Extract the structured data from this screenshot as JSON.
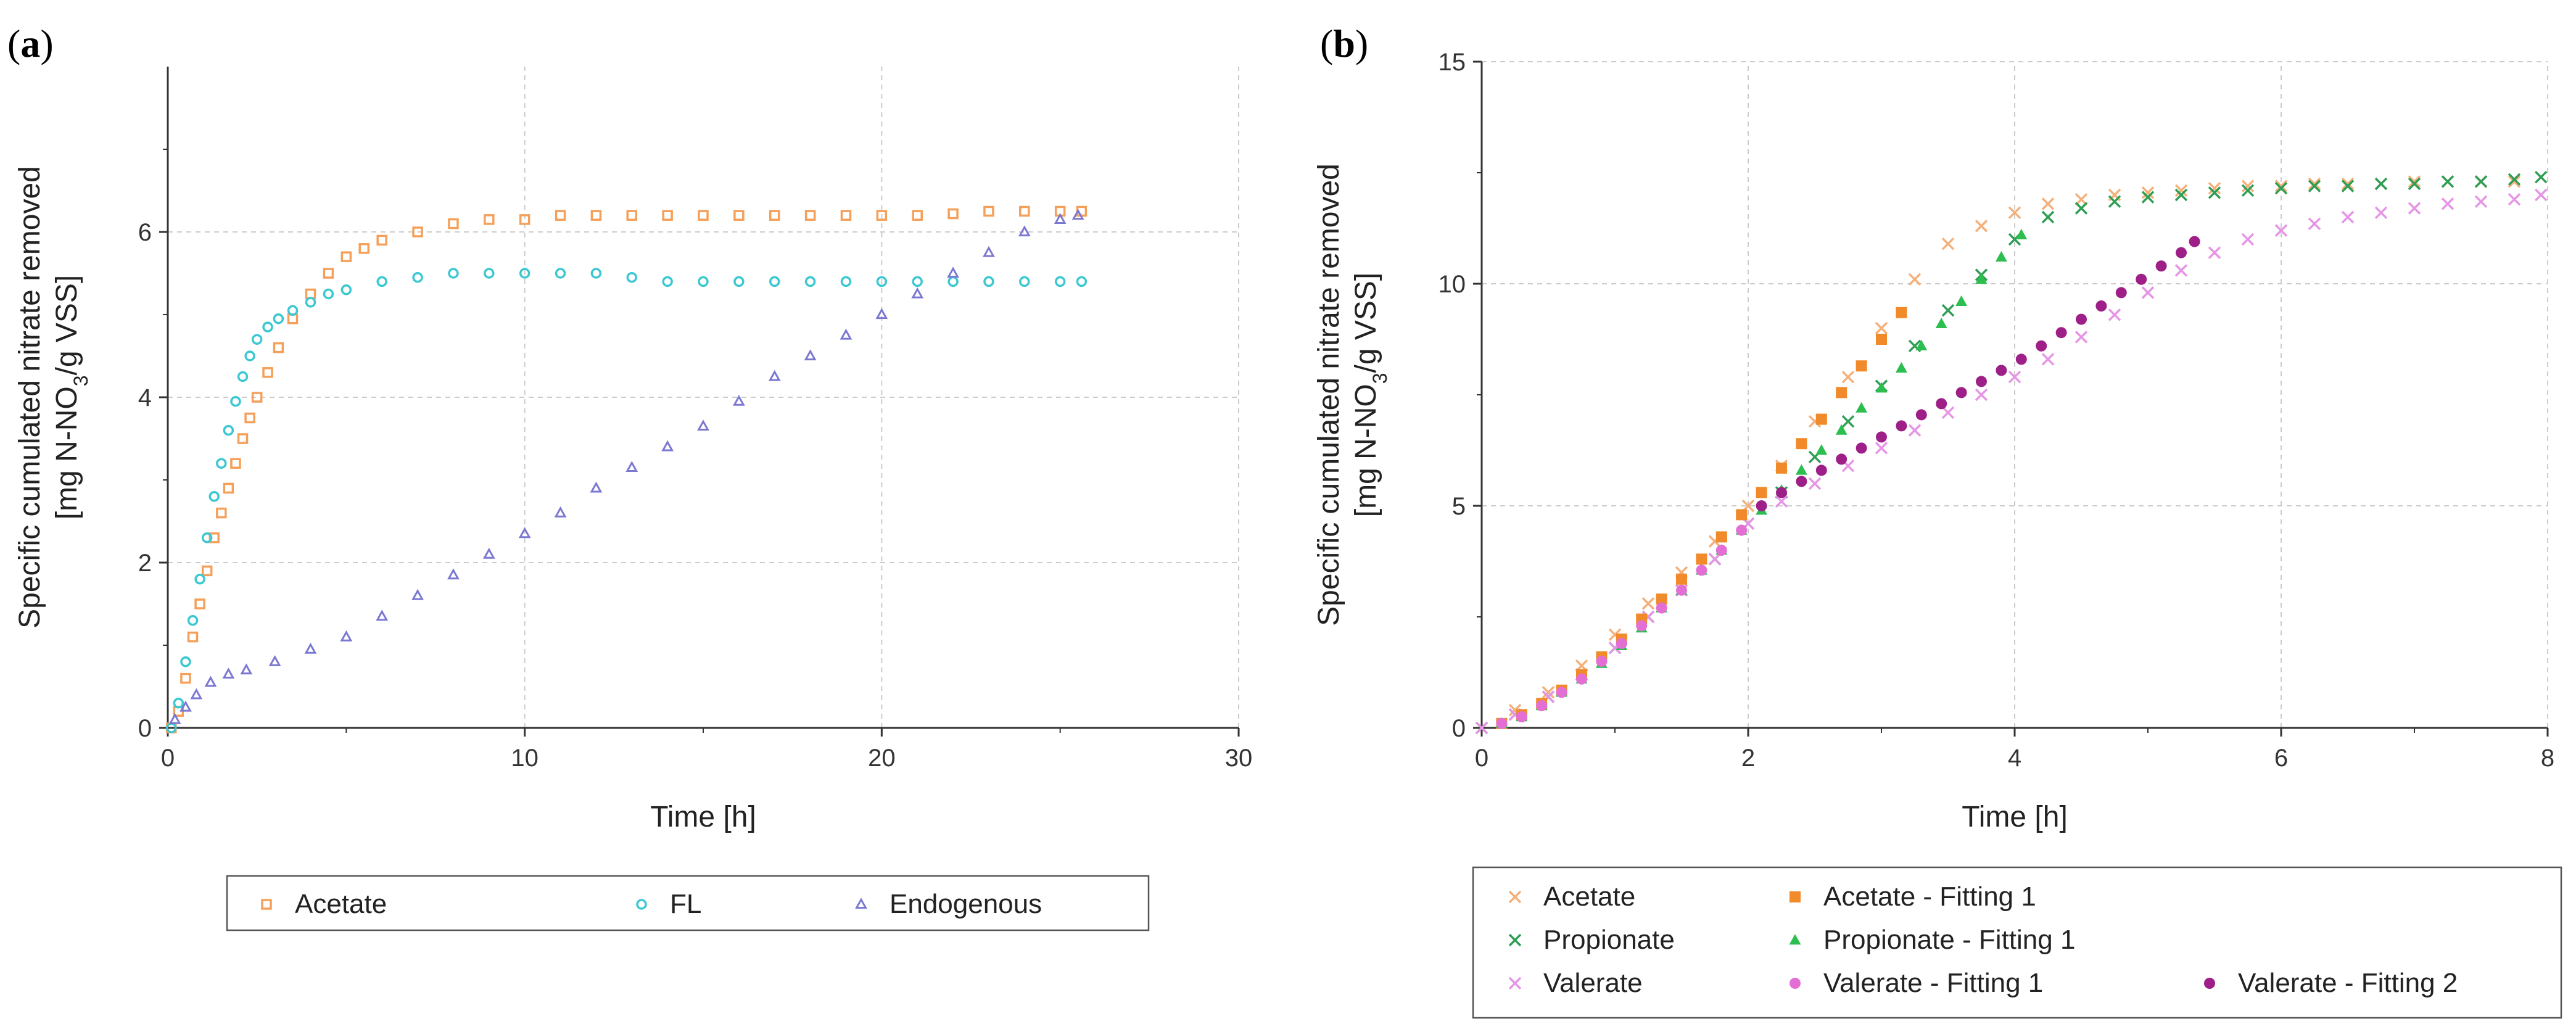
{
  "chart_data": [
    {
      "panel_label": "(a)",
      "panel_letter": "a",
      "type": "scatter",
      "xlabel": "Time [h]",
      "ylabel_line1": "Specific cumulated nitrate removed",
      "ylabel_line2": "[mg N-NO",
      "ylabel_sub": "3",
      "ylabel_line2_end": "/g VSS]",
      "xlim": [
        0,
        30
      ],
      "ylim": [
        0,
        8
      ],
      "xticks": [
        0,
        10,
        20,
        30
      ],
      "yticks": [
        0,
        2,
        4,
        6
      ],
      "grid": true,
      "legend_position": "bottom",
      "series": [
        {
          "name": "Acetate",
          "marker": "open-square",
          "color": "#F5A05A",
          "x": [
            0.1,
            0.3,
            0.5,
            0.7,
            0.9,
            1.1,
            1.3,
            1.5,
            1.7,
            1.9,
            2.1,
            2.3,
            2.5,
            2.8,
            3.1,
            3.5,
            4.0,
            4.5,
            5.0,
            5.5,
            6.0,
            7.0,
            8.0,
            9.0,
            10.0,
            11.0,
            12.0,
            13.0,
            14.0,
            15.0,
            16.0,
            17.0,
            18.0,
            19.0,
            20.0,
            21.0,
            22.0,
            23.0,
            24.0,
            25.0,
            25.6
          ],
          "y": [
            0.0,
            0.2,
            0.6,
            1.1,
            1.5,
            1.9,
            2.3,
            2.6,
            2.9,
            3.2,
            3.5,
            3.75,
            4.0,
            4.3,
            4.6,
            4.95,
            5.25,
            5.5,
            5.7,
            5.8,
            5.9,
            6.0,
            6.1,
            6.15,
            6.15,
            6.2,
            6.2,
            6.2,
            6.2,
            6.2,
            6.2,
            6.2,
            6.2,
            6.2,
            6.2,
            6.2,
            6.22,
            6.25,
            6.25,
            6.25,
            6.25
          ]
        },
        {
          "name": "FL",
          "marker": "open-circle",
          "color": "#3CC8D2",
          "x": [
            0.1,
            0.3,
            0.5,
            0.7,
            0.9,
            1.1,
            1.3,
            1.5,
            1.7,
            1.9,
            2.1,
            2.3,
            2.5,
            2.8,
            3.1,
            3.5,
            4.0,
            4.5,
            5.0,
            6.0,
            7.0,
            8.0,
            9.0,
            10.0,
            11.0,
            12.0,
            13.0,
            14.0,
            15.0,
            16.0,
            17.0,
            18.0,
            19.0,
            20.0,
            21.0,
            22.0,
            23.0,
            24.0,
            25.0,
            25.6
          ],
          "y": [
            0.0,
            0.3,
            0.8,
            1.3,
            1.8,
            2.3,
            2.8,
            3.2,
            3.6,
            3.95,
            4.25,
            4.5,
            4.7,
            4.85,
            4.95,
            5.05,
            5.15,
            5.25,
            5.3,
            5.4,
            5.45,
            5.5,
            5.5,
            5.5,
            5.5,
            5.5,
            5.45,
            5.4,
            5.4,
            5.4,
            5.4,
            5.4,
            5.4,
            5.4,
            5.4,
            5.4,
            5.4,
            5.4,
            5.4,
            5.4
          ]
        },
        {
          "name": "Endogenous",
          "marker": "open-triangle",
          "color": "#7B78D2",
          "x": [
            0.2,
            0.5,
            0.8,
            1.2,
            1.7,
            2.2,
            3.0,
            4.0,
            5.0,
            6.0,
            7.0,
            8.0,
            9.0,
            10.0,
            11.0,
            12.0,
            13.0,
            14.0,
            15.0,
            16.0,
            17.0,
            18.0,
            19.0,
            20.0,
            21.0,
            22.0,
            23.0,
            24.0,
            25.0,
            25.5
          ],
          "y": [
            0.1,
            0.25,
            0.4,
            0.55,
            0.65,
            0.7,
            0.8,
            0.95,
            1.1,
            1.35,
            1.6,
            1.85,
            2.1,
            2.35,
            2.6,
            2.9,
            3.15,
            3.4,
            3.65,
            3.95,
            4.25,
            4.5,
            4.75,
            5.0,
            5.25,
            5.5,
            5.75,
            6.0,
            6.15,
            6.2
          ]
        }
      ]
    },
    {
      "panel_label": "(b)",
      "panel_letter": "b",
      "type": "scatter",
      "xlabel": "Time [h]",
      "ylabel_line1": "Specific cumulated nitrate removed",
      "ylabel_line2": "[mg N-NO",
      "ylabel_sub": "3",
      "ylabel_line2_end": "/g VSS]",
      "xlim": [
        0,
        8
      ],
      "ylim": [
        0,
        15
      ],
      "xticks": [
        0,
        2,
        4,
        6,
        8
      ],
      "yticks": [
        0,
        5,
        10,
        15
      ],
      "grid": true,
      "legend_position": "bottom",
      "series": [
        {
          "name": "Acetate",
          "marker": "cross",
          "color": "#F5B07A",
          "x": [
            0.0,
            0.25,
            0.5,
            0.75,
            1.0,
            1.25,
            1.5,
            1.75,
            2.0,
            2.25,
            2.5,
            2.75,
            3.0,
            3.25,
            3.5,
            3.75,
            4.0,
            4.25,
            4.5,
            4.75,
            5.0,
            5.25,
            5.5,
            5.75,
            6.0,
            6.25,
            6.5,
            6.75,
            7.0,
            7.25,
            7.5,
            7.75
          ],
          "y": [
            0.0,
            0.4,
            0.8,
            1.4,
            2.1,
            2.8,
            3.5,
            4.2,
            5.0,
            5.9,
            6.9,
            7.9,
            9.0,
            10.1,
            10.9,
            11.3,
            11.6,
            11.8,
            11.9,
            12.0,
            12.05,
            12.1,
            12.15,
            12.2,
            12.2,
            12.25,
            12.25,
            12.25,
            12.3,
            12.3,
            12.3,
            12.3
          ]
        },
        {
          "name": "Propionate",
          "marker": "cross",
          "color": "#2E9E54",
          "x": [
            0.0,
            0.25,
            0.5,
            0.75,
            1.0,
            1.25,
            1.5,
            1.75,
            2.0,
            2.25,
            2.5,
            2.75,
            3.0,
            3.25,
            3.5,
            3.75,
            4.0,
            4.25,
            4.5,
            4.75,
            5.0,
            5.25,
            5.5,
            5.75,
            6.0,
            6.25,
            6.5,
            6.75,
            7.0,
            7.25,
            7.5,
            7.75,
            7.95
          ],
          "y": [
            0.0,
            0.3,
            0.7,
            1.2,
            1.8,
            2.5,
            3.1,
            3.8,
            4.6,
            5.3,
            6.1,
            6.9,
            7.7,
            8.6,
            9.4,
            10.2,
            11.0,
            11.5,
            11.7,
            11.85,
            11.95,
            12.0,
            12.05,
            12.1,
            12.15,
            12.2,
            12.2,
            12.25,
            12.25,
            12.3,
            12.3,
            12.35,
            12.4
          ]
        },
        {
          "name": "Valerate",
          "marker": "cross",
          "color": "#E695E6",
          "x": [
            0.0,
            0.25,
            0.5,
            0.75,
            1.0,
            1.25,
            1.5,
            1.75,
            2.0,
            2.25,
            2.5,
            2.75,
            3.0,
            3.25,
            3.5,
            3.75,
            4.0,
            4.25,
            4.5,
            4.75,
            5.0,
            5.25,
            5.5,
            5.75,
            6.0,
            6.25,
            6.5,
            6.75,
            7.0,
            7.25,
            7.5,
            7.75,
            7.95
          ],
          "y": [
            0.0,
            0.3,
            0.7,
            1.2,
            1.8,
            2.5,
            3.1,
            3.8,
            4.6,
            5.1,
            5.5,
            5.9,
            6.3,
            6.7,
            7.1,
            7.5,
            7.9,
            8.3,
            8.8,
            9.3,
            9.8,
            10.3,
            10.7,
            11.0,
            11.2,
            11.35,
            11.5,
            11.6,
            11.7,
            11.8,
            11.85,
            11.9,
            12.0
          ]
        },
        {
          "name": "Acetate - Fitting 1",
          "marker": "filled-square",
          "color": "#F08A2A",
          "x": [
            0.15,
            0.3,
            0.45,
            0.6,
            0.75,
            0.9,
            1.05,
            1.2,
            1.35,
            1.5,
            1.65,
            1.8,
            1.95,
            2.1,
            2.25,
            2.4,
            2.55,
            2.7,
            2.85,
            3.0,
            3.15
          ],
          "y": [
            0.1,
            0.3,
            0.55,
            0.85,
            1.2,
            1.6,
            2.0,
            2.45,
            2.9,
            3.35,
            3.8,
            4.3,
            4.8,
            5.3,
            5.85,
            6.4,
            6.95,
            7.55,
            8.15,
            8.75,
            9.35
          ]
        },
        {
          "name": "Propionate - Fitting 1",
          "marker": "filled-triangle",
          "color": "#2DBE50",
          "x": [
            0.15,
            0.3,
            0.45,
            0.6,
            0.75,
            0.9,
            1.05,
            1.2,
            1.35,
            1.5,
            1.65,
            1.8,
            1.95,
            2.1,
            2.25,
            2.4,
            2.55,
            2.7,
            2.85,
            3.0,
            3.15,
            3.3,
            3.45,
            3.6,
            3.75,
            3.9,
            4.05
          ],
          "y": [
            0.1,
            0.25,
            0.5,
            0.8,
            1.1,
            1.45,
            1.85,
            2.25,
            2.7,
            3.1,
            3.55,
            4.0,
            4.45,
            4.9,
            5.35,
            5.8,
            6.25,
            6.7,
            7.2,
            7.65,
            8.1,
            8.6,
            9.1,
            9.6,
            10.1,
            10.6,
            11.1
          ]
        },
        {
          "name": "Valerate - Fitting 1",
          "marker": "filled-circle",
          "color": "#E36FD5",
          "x": [
            0.15,
            0.3,
            0.45,
            0.6,
            0.75,
            0.9,
            1.05,
            1.2,
            1.35,
            1.5,
            1.65,
            1.8,
            1.95
          ],
          "y": [
            0.1,
            0.25,
            0.5,
            0.8,
            1.1,
            1.5,
            1.9,
            2.3,
            2.7,
            3.1,
            3.55,
            4.0,
            4.45
          ]
        },
        {
          "name": "Valerate - Fitting 2",
          "marker": "filled-circle",
          "color": "#9E1F87",
          "x": [
            2.1,
            2.25,
            2.4,
            2.55,
            2.7,
            2.85,
            3.0,
            3.15,
            3.3,
            3.45,
            3.6,
            3.75,
            3.9,
            4.05,
            4.2,
            4.35,
            4.5,
            4.65,
            4.8,
            4.95,
            5.1,
            5.25,
            5.35
          ],
          "y": [
            5.0,
            5.3,
            5.55,
            5.8,
            6.05,
            6.3,
            6.55,
            6.8,
            7.05,
            7.3,
            7.55,
            7.8,
            8.05,
            8.3,
            8.6,
            8.9,
            9.2,
            9.5,
            9.8,
            10.1,
            10.4,
            10.7,
            10.95
          ]
        }
      ]
    }
  ]
}
